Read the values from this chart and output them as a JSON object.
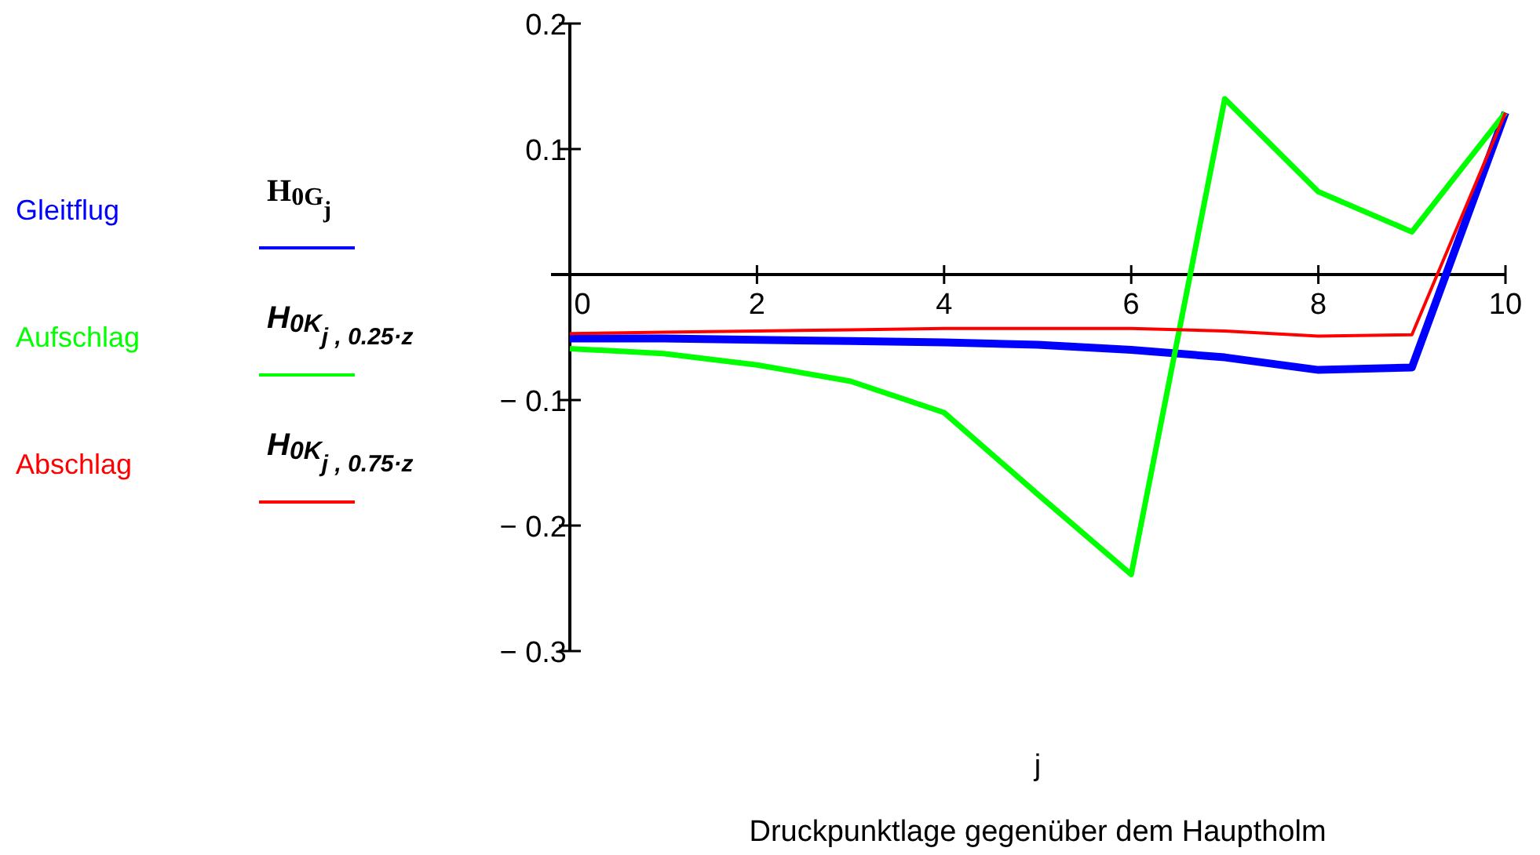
{
  "chart_data": {
    "type": "line",
    "xlabel": "j",
    "x": [
      0,
      1,
      2,
      3,
      4,
      5,
      6,
      7,
      8,
      9,
      10
    ],
    "xlim": [
      0,
      10
    ],
    "xticks": [
      0,
      2,
      4,
      6,
      8,
      10
    ],
    "ylim": [
      -0.3,
      0.2
    ],
    "yticks": [
      {
        "value": -0.3,
        "label": "− 0.3"
      },
      {
        "value": -0.2,
        "label": "− 0.2"
      },
      {
        "value": -0.1,
        "label": "− 0.1"
      },
      {
        "value": 0.1,
        "label": "0.1"
      },
      {
        "value": 0.2,
        "label": "0.2"
      }
    ],
    "grid": false,
    "legend": "left",
    "marker": "none",
    "line_style": "solid",
    "series": [
      {
        "name": "Gleitflug",
        "color": "#0000ff",
        "values": [
          -0.051,
          -0.051,
          -0.052,
          -0.053,
          -0.054,
          -0.056,
          -0.06,
          -0.066,
          -0.076,
          -0.074,
          0.129
        ]
      },
      {
        "name": "Aufschlag",
        "color": "#00ff00",
        "values": [
          -0.059,
          -0.063,
          -0.072,
          -0.085,
          -0.11,
          -0.175,
          -0.239,
          0.14,
          0.066,
          0.034,
          0.129
        ]
      },
      {
        "name": "Abschlag",
        "color": "#ff0000",
        "values": [
          -0.047,
          -0.046,
          -0.045,
          -0.044,
          -0.043,
          -0.043,
          -0.043,
          -0.045,
          -0.049,
          -0.048,
          0.129
        ]
      }
    ],
    "annotations": [
      "Druckpunktlage gegenüber dem Hauptholm",
      "H$_{0G}$$_{j}$",
      "H$_{0K}$$_{j , 0.25·z}$",
      "H$_{0K}$$_{j , 0.75·z}$"
    ]
  }
}
